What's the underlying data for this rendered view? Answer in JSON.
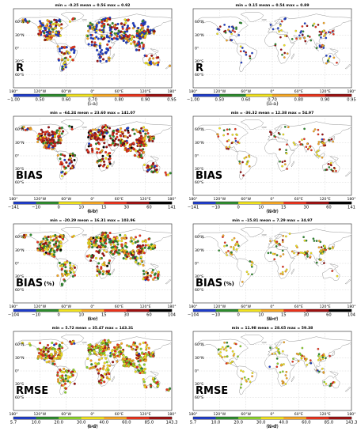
{
  "lat_labels": [
    "60°N",
    "30°N",
    "0°",
    "30°S",
    "60°S"
  ],
  "lon_labels": [
    "180°",
    "120°W",
    "60°W",
    "0°",
    "60°E",
    "120°E",
    "180°"
  ],
  "unit": "W/m²",
  "land_color": "#ffffff",
  "coast_color": "#8a8a8a",
  "colorbars": {
    "R": {
      "ticks": [
        "−1.00",
        "0.50",
        "0.60",
        "0.70",
        "0.80",
        "0.90",
        "0.95"
      ],
      "colors": [
        "#1f3dc9",
        "#2e8b2e",
        "#f0e11e",
        "#f5a623",
        "#e8331c",
        "#9c1111"
      ]
    },
    "BIAS": {
      "ticks": [
        "−141",
        "−10",
        "0",
        "10",
        "15",
        "30",
        "60",
        "141"
      ],
      "colors": [
        "#1f3dc9",
        "#2e8b2e",
        "#f0e11e",
        "#f5a623",
        "#e8331c",
        "#9c1111",
        "#000000"
      ]
    },
    "BIAS_PCT": {
      "ticks": [
        "−104",
        "−10",
        "0",
        "10",
        "15",
        "30",
        "60",
        "104"
      ],
      "colors": [
        "#1f3dc9",
        "#2e8b2e",
        "#f0e11e",
        "#f5a623",
        "#e8331c",
        "#9c1111",
        "#000000"
      ]
    },
    "RMSE": {
      "ticks": [
        "5.7",
        "10.0",
        "20.0",
        "30.0",
        "40.0",
        "60.0",
        "85.0",
        "143.3"
      ],
      "colors": [
        "#1f3dc9",
        "#2e8b2e",
        "#8bd12a",
        "#f0e11e",
        "#f5a623",
        "#e8331c",
        "#9c1111"
      ]
    }
  },
  "chart_data": [
    {
      "type": "scatter",
      "panel": "(i-a)",
      "metric": "R",
      "stats": "min = -0.25   mean = 0.56   max = 0.92",
      "cbar": "R",
      "density": "dense",
      "color_weights": [
        0.35,
        0.1,
        0.12,
        0.15,
        0.15,
        0.13
      ],
      "show_unit": false
    },
    {
      "type": "scatter",
      "panel": "(ii-a)",
      "metric": "R",
      "stats": "min = 0.15   mean = 0.54   max = 0.89",
      "cbar": "R",
      "density": "sparse",
      "color_weights": [
        0.3,
        0.15,
        0.15,
        0.15,
        0.15,
        0.1
      ],
      "show_unit": false
    },
    {
      "type": "scatter",
      "panel": "(i-b)",
      "metric": "BIAS",
      "stats": "min = -64.24   mean = 23.60   max = 141.07",
      "cbar": "BIAS",
      "density": "dense",
      "color_weights": [
        0.05,
        0.1,
        0.1,
        0.12,
        0.3,
        0.28,
        0.05
      ],
      "show_unit": true
    },
    {
      "type": "scatter",
      "panel": "(ii-b)",
      "metric": "BIAS",
      "stats": "min = -36.32   mean = 12.38   max = 54.97",
      "cbar": "BIAS",
      "density": "sparse",
      "color_weights": [
        0.05,
        0.12,
        0.2,
        0.2,
        0.23,
        0.2,
        0.0
      ],
      "show_unit": true
    },
    {
      "type": "scatter",
      "panel": "(i-c)",
      "metric": "BIAS(%)",
      "stats": "min = -20.29   mean = 16.31   max = 103.96",
      "cbar": "BIAS_PCT",
      "density": "dense",
      "color_weights": [
        0.02,
        0.25,
        0.2,
        0.18,
        0.18,
        0.15,
        0.02
      ],
      "show_unit": true
    },
    {
      "type": "scatter",
      "panel": "(ii-c)",
      "metric": "BIAS(%)",
      "stats": "min = -15.81   mean = 7.29   max = 34.97",
      "cbar": "BIAS_PCT",
      "density": "sparse",
      "color_weights": [
        0.02,
        0.28,
        0.3,
        0.22,
        0.12,
        0.06,
        0.0
      ],
      "show_unit": true
    },
    {
      "type": "scatter",
      "panel": "(i-d)",
      "metric": "RMSE",
      "stats": "min = 5.72   mean = 35.47   max = 143.31",
      "cbar": "RMSE",
      "density": "dense",
      "color_weights": [
        0.02,
        0.08,
        0.2,
        0.22,
        0.22,
        0.16,
        0.1
      ],
      "show_unit": true
    },
    {
      "type": "scatter",
      "panel": "(ii-d)",
      "metric": "RMSE",
      "stats": "min = 11.98   mean = 28.65   max = 59.38",
      "cbar": "RMSE",
      "density": "sparse",
      "color_weights": [
        0.02,
        0.1,
        0.18,
        0.3,
        0.25,
        0.15,
        0.0
      ],
      "show_unit": true
    }
  ]
}
